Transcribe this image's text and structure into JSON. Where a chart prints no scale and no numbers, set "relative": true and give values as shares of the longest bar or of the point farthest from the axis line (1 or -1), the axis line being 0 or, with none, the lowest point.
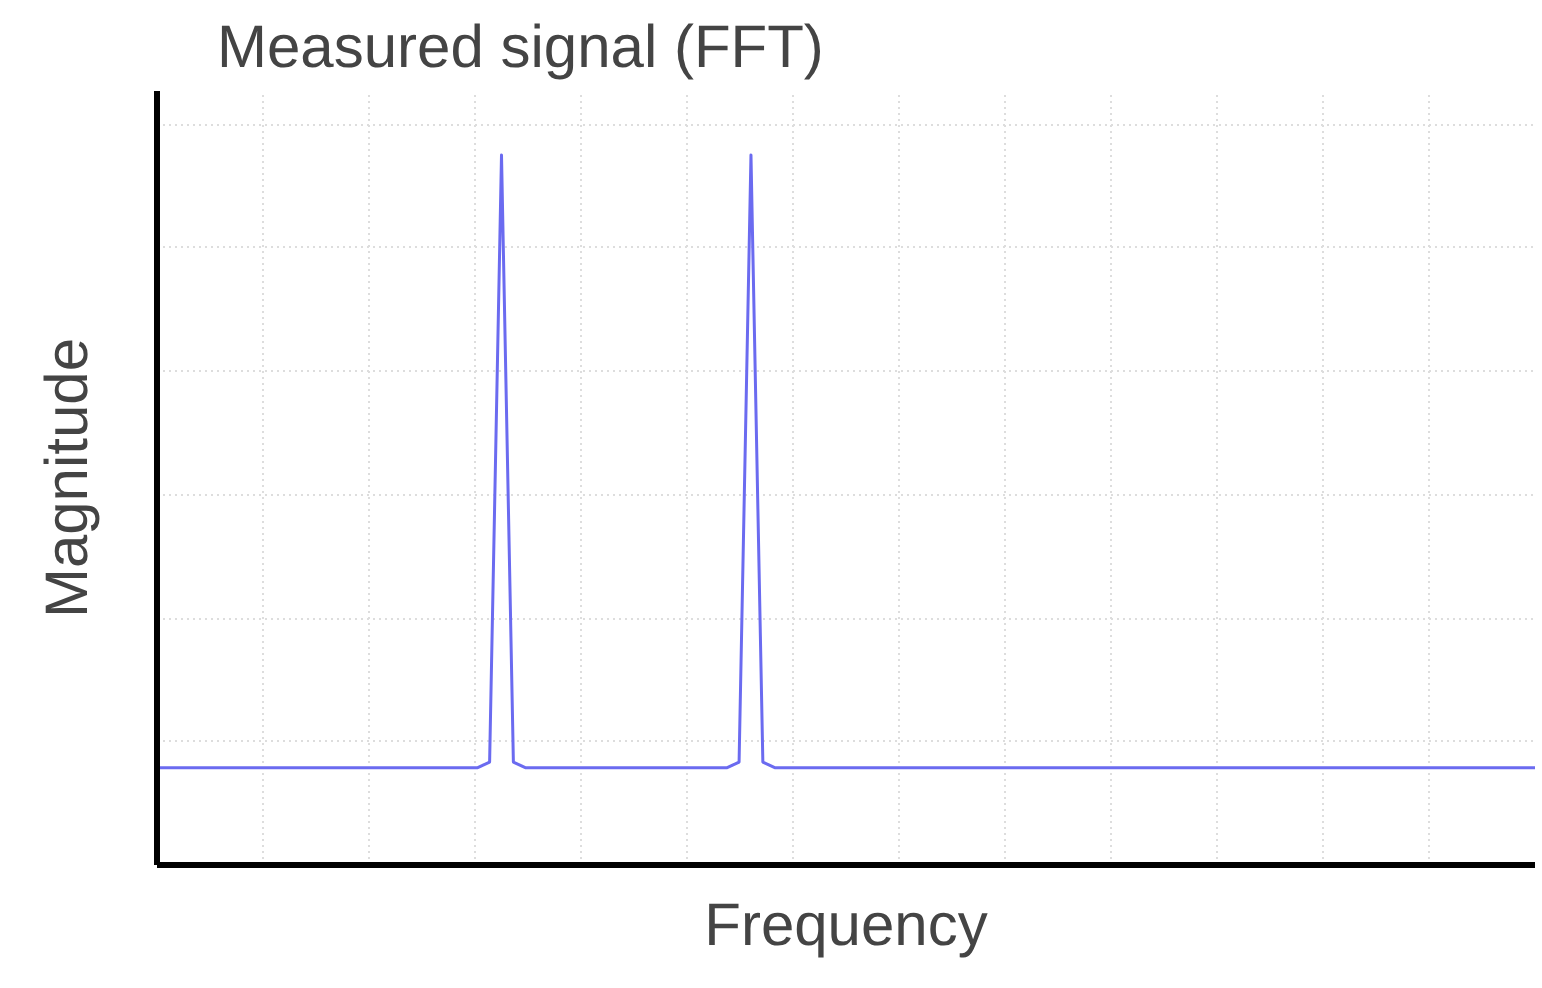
{
  "chart_data": {
    "type": "line",
    "title": "Measured signal (FFT)",
    "xlabel": "Frequency",
    "ylabel": "Magnitude",
    "relative": true,
    "grid": true,
    "tick_labels": false,
    "categories": [
      null,
      null,
      null,
      null,
      null,
      null,
      null,
      null,
      null,
      null,
      null,
      null,
      null,
      null,
      null,
      null,
      null,
      null,
      null,
      null,
      null,
      null,
      null,
      null,
      null,
      null,
      null,
      null,
      null,
      null,
      null,
      null,
      null,
      null,
      null,
      null,
      null,
      null,
      null,
      null,
      null,
      null,
      null,
      null,
      null,
      null,
      null,
      null,
      null,
      null,
      null,
      null,
      null,
      null,
      null,
      null,
      null,
      null,
      null,
      null,
      null,
      null,
      null,
      null,
      null,
      null,
      null,
      null,
      null,
      null,
      null,
      null,
      null,
      null,
      null,
      null,
      null,
      null,
      null,
      null,
      null,
      null,
      null,
      null,
      null,
      null,
      null,
      null,
      null,
      null,
      null,
      null,
      null,
      null,
      null,
      null,
      null,
      null,
      null,
      null,
      null,
      null,
      null,
      null,
      null,
      null,
      null,
      null,
      null,
      null,
      null,
      null,
      null,
      null,
      null,
      null,
      null
    ],
    "series": [
      {
        "color": "#6b6bf0",
        "values": [
          0.137,
          0.137,
          0.137,
          0.137,
          0.137,
          0.137,
          0.137,
          0.137,
          0.137,
          0.137,
          0.137,
          0.137,
          0.137,
          0.137,
          0.137,
          0.137,
          0.137,
          0.137,
          0.137,
          0.137,
          0.137,
          0.137,
          0.137,
          0.137,
          0.137,
          0.137,
          0.137,
          0.137,
          0.145,
          1.0,
          0.145,
          0.137,
          0.137,
          0.137,
          0.137,
          0.137,
          0.137,
          0.137,
          0.137,
          0.137,
          0.137,
          0.137,
          0.137,
          0.137,
          0.137,
          0.137,
          0.137,
          0.137,
          0.137,
          0.145,
          1.0,
          0.145,
          0.137,
          0.137,
          0.137,
          0.137,
          0.137,
          0.137,
          0.137,
          0.137,
          0.137,
          0.137,
          0.137,
          0.137,
          0.137,
          0.137,
          0.137,
          0.137,
          0.137,
          0.137,
          0.137,
          0.137,
          0.137,
          0.137,
          0.137,
          0.137,
          0.137,
          0.137,
          0.137,
          0.137,
          0.137,
          0.137,
          0.137,
          0.137,
          0.137,
          0.137,
          0.137,
          0.137,
          0.137,
          0.137,
          0.137,
          0.137,
          0.137,
          0.137,
          0.137,
          0.137,
          0.137,
          0.137,
          0.137,
          0.137,
          0.137,
          0.137,
          0.137,
          0.137,
          0.137,
          0.137,
          0.137,
          0.137,
          0.137,
          0.137,
          0.137,
          0.137,
          0.137,
          0.137,
          0.137,
          0.137,
          0.137
        ]
      }
    ]
  }
}
